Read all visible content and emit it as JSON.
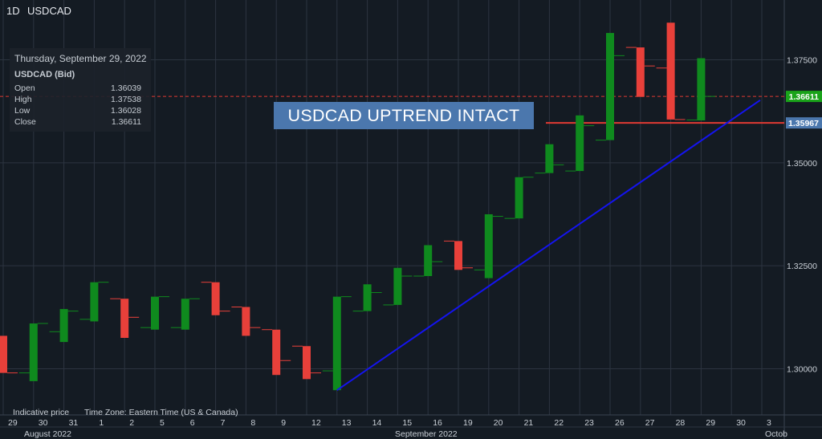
{
  "header": {
    "timeframe": "1D",
    "symbol": "USDCAD"
  },
  "info_panel": {
    "date": "Thursday, September 29, 2022",
    "instrument": "USDCAD (Bid)",
    "rows": [
      {
        "label": "Open",
        "value": "1.36039"
      },
      {
        "label": "High",
        "value": "1.37538"
      },
      {
        "label": "Low",
        "value": "1.36028"
      },
      {
        "label": "Close",
        "value": "1.36611"
      }
    ]
  },
  "annotation": "USDCAD UPTREND INTACT",
  "footer": {
    "indicative": "Indicative price",
    "timezone": "Time Zone: Eastern Time (US & Canada)"
  },
  "colors": {
    "up": "#0f8a1e",
    "down": "#e8403a",
    "trendline": "#1414ee",
    "resistance": "#e03a33",
    "price_tag": "#1aa31a",
    "resistance_tag": "#4b77ad"
  },
  "chart_data": {
    "type": "ohlc-candlestick",
    "ylim": [
      1.2888,
      1.386
    ],
    "y_ticks": [
      "1.30000",
      "1.32500",
      "1.35000",
      "1.37500"
    ],
    "x_ticks": [
      "29",
      "30",
      "31",
      "1",
      "2",
      "5",
      "6",
      "7",
      "8",
      "9",
      "12",
      "13",
      "14",
      "15",
      "16",
      "19",
      "20",
      "21",
      "22",
      "23",
      "26",
      "27",
      "28",
      "29",
      "30",
      "3"
    ],
    "month_labels": [
      {
        "label": "August 2022",
        "at": "30"
      },
      {
        "label": "September 2022",
        "at": "16"
      },
      {
        "label": "Octob",
        "at": "3"
      }
    ],
    "candles": [
      {
        "date": "Aug 29",
        "open": 1.308,
        "high": 1.308,
        "low": 1.299,
        "close": 1.299
      },
      {
        "date": "Aug 30",
        "open": 1.299,
        "high": 1.311,
        "low": 1.297,
        "close": 1.311
      },
      {
        "date": "Aug 31",
        "open": 1.309,
        "high": 1.3145,
        "low": 1.3065,
        "close": 1.314
      },
      {
        "date": "Sep 1",
        "open": 1.312,
        "high": 1.321,
        "low": 1.3115,
        "close": 1.321
      },
      {
        "date": "Sep 2",
        "open": 1.317,
        "high": 1.317,
        "low": 1.3075,
        "close": 1.3125
      },
      {
        "date": "Sep 5",
        "open": 1.31,
        "high": 1.3175,
        "low": 1.3095,
        "close": 1.3175
      },
      {
        "date": "Sep 6",
        "open": 1.31,
        "high": 1.317,
        "low": 1.3095,
        "close": 1.317
      },
      {
        "date": "Sep 7",
        "open": 1.321,
        "high": 1.321,
        "low": 1.313,
        "close": 1.314
      },
      {
        "date": "Sep 8",
        "open": 1.315,
        "high": 1.315,
        "low": 1.308,
        "close": 1.31
      },
      {
        "date": "Sep 9",
        "open": 1.3095,
        "high": 1.3095,
        "low": 1.2985,
        "close": 1.302
      },
      {
        "date": "Sep 12",
        "open": 1.3055,
        "high": 1.3055,
        "low": 1.2975,
        "close": 1.299
      },
      {
        "date": "Sep 13",
        "open": 1.2995,
        "high": 1.3175,
        "low": 1.2948,
        "close": 1.3175
      },
      {
        "date": "Sep 14",
        "open": 1.314,
        "high": 1.3205,
        "low": 1.314,
        "close": 1.3185
      },
      {
        "date": "Sep 15",
        "open": 1.3155,
        "high": 1.3245,
        "low": 1.3155,
        "close": 1.3225
      },
      {
        "date": "Sep 16",
        "open": 1.3225,
        "high": 1.33,
        "low": 1.3225,
        "close": 1.326
      },
      {
        "date": "Sep 19",
        "open": 1.331,
        "high": 1.331,
        "low": 1.324,
        "close": 1.3245
      },
      {
        "date": "Sep 20",
        "open": 1.324,
        "high": 1.3375,
        "low": 1.322,
        "close": 1.337
      },
      {
        "date": "Sep 21",
        "open": 1.3365,
        "high": 1.3465,
        "low": 1.3365,
        "close": 1.3465
      },
      {
        "date": "Sep 22",
        "open": 1.3475,
        "high": 1.3545,
        "low": 1.3475,
        "close": 1.3495
      },
      {
        "date": "Sep 23",
        "open": 1.348,
        "high": 1.3615,
        "low": 1.348,
        "close": 1.359
      },
      {
        "date": "Sep 26",
        "open": 1.3555,
        "high": 1.3815,
        "low": 1.3555,
        "close": 1.376
      },
      {
        "date": "Sep 27",
        "open": 1.378,
        "high": 1.378,
        "low": 1.366,
        "close": 1.3735
      },
      {
        "date": "Sep 28",
        "open": 1.373,
        "high": 1.384,
        "low": 1.3605,
        "close": 1.3605
      },
      {
        "date": "Sep 29",
        "open": 1.36039,
        "high": 1.37538,
        "low": 1.36028,
        "close": 1.36611
      }
    ],
    "last_price": {
      "label": "1.36611",
      "value": 1.36611
    },
    "resistance": {
      "label": "1.35967",
      "value": 1.35967
    },
    "trendline": {
      "from_date": "Sep 13",
      "from_value": 1.2948,
      "to_date": "Oct 3",
      "to_value": 1.3652
    }
  }
}
